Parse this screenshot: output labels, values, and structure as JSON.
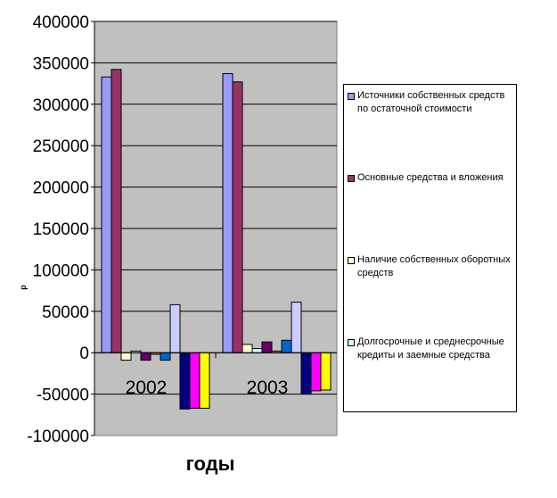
{
  "chart_data": {
    "type": "bar",
    "categories": [
      "2002",
      "2003"
    ],
    "xlabel": "годы",
    "ylabel": "р",
    "ylim": [
      -100000,
      400000
    ],
    "yticks": [
      "400000",
      "350000",
      "300000",
      "250000",
      "200000",
      "150000",
      "100000",
      "50000",
      "0",
      "-50000",
      "-100000"
    ],
    "grid": true,
    "legend_position": "right",
    "colors": {
      "plot_background": "#c0c0c0",
      "gridline": "#000000"
    },
    "series": [
      {
        "name": "Источники собственных средств по остаточной стоимости",
        "color": "#9999ff",
        "values": [
          333000,
          337000
        ]
      },
      {
        "name": "Основные средства и вложения",
        "color": "#993366",
        "values": [
          342000,
          327000
        ]
      },
      {
        "name": "Наличие собственных оборотных средств",
        "color": "#ffffcc",
        "values": [
          -9000,
          10000
        ]
      },
      {
        "name": "Долгосрочные и среднесрочные кредиты и заемные средства",
        "color": "#ccffff",
        "values": [
          2000,
          5000
        ]
      },
      {
        "name": "",
        "color": "#660066",
        "values": [
          -9000,
          13000
        ]
      },
      {
        "name": "",
        "color": "#ff8080",
        "values": [
          -2000,
          2000
        ]
      },
      {
        "name": "",
        "color": "#0066cc",
        "values": [
          -9000,
          15000
        ]
      },
      {
        "name": "",
        "color": "#ccccff",
        "values": [
          58000,
          61000
        ]
      },
      {
        "name": "",
        "color": "#000080",
        "values": [
          -68000,
          -50000
        ]
      },
      {
        "name": "",
        "color": "#ff00ff",
        "values": [
          -67000,
          -46000
        ]
      },
      {
        "name": "",
        "color": "#ffff00",
        "values": [
          -67000,
          -45000
        ]
      }
    ]
  }
}
